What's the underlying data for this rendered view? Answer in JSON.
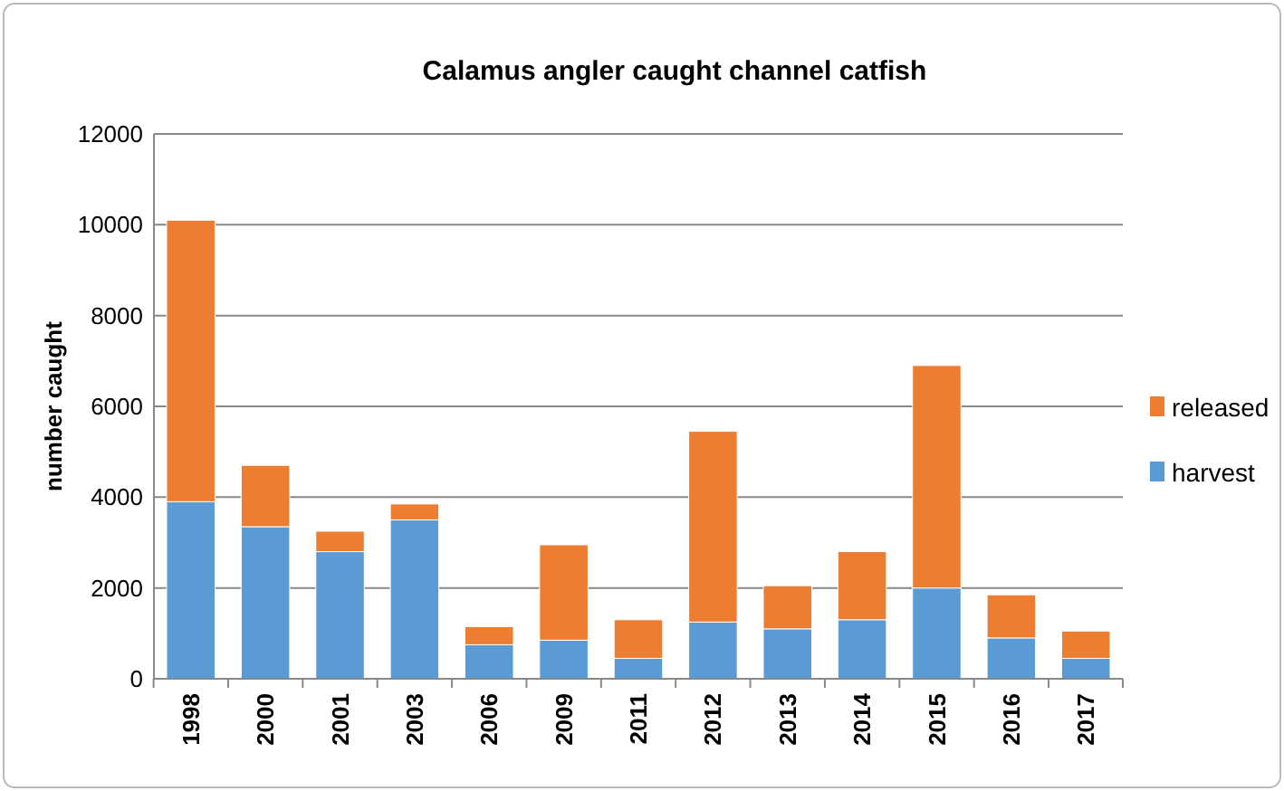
{
  "chart_data": {
    "type": "bar",
    "title": "Calamus angler caught channel catfish",
    "ylabel": "number caught",
    "stacked": true,
    "categories": [
      "1998",
      "2000",
      "2001",
      "2003",
      "2006",
      "2009",
      "2011",
      "2012",
      "2013",
      "2014",
      "2015",
      "2016",
      "2017"
    ],
    "series": [
      {
        "name": "harvest",
        "color": "#5b9bd5",
        "values": [
          3900,
          3350,
          2800,
          3500,
          750,
          850,
          450,
          1250,
          1100,
          1300,
          2000,
          900,
          450
        ]
      },
      {
        "name": "released",
        "color": "#ed7d31",
        "values": [
          6200,
          1350,
          450,
          350,
          400,
          2100,
          850,
          4200,
          950,
          1500,
          4900,
          950,
          600
        ]
      }
    ],
    "ylim": [
      0,
      12000
    ],
    "yticks": [
      0,
      2000,
      4000,
      6000,
      8000,
      10000,
      12000
    ],
    "grid": "y",
    "legend": "right"
  }
}
